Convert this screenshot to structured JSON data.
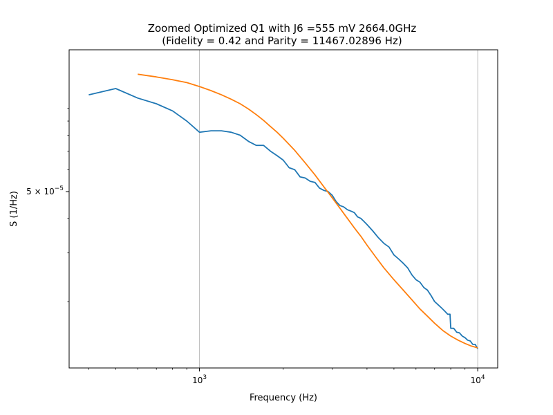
{
  "chart_data": {
    "type": "line",
    "title_line1": "Zoomed Optimized Q1 with J6 =555 mV 2664.0GHz",
    "title_line2": "(Fidelity = 0.42 and Parity = 11467.02896 Hz)",
    "xlabel": "Frequency (Hz)",
    "ylabel": "S (1/Hz)",
    "x_scale": "log",
    "y_scale": "log",
    "xlim": [
      340,
      11800
    ],
    "ylim": [
      1.15e-05,
      0.000163
    ],
    "x_ticks": [
      {
        "value": 1000,
        "base": "10",
        "exp": "3"
      },
      {
        "value": 10000,
        "base": "10",
        "exp": "4"
      }
    ],
    "y_ticks": [
      {
        "value": 5e-05,
        "mantissa": "5",
        "base": "10",
        "exp": "−5"
      }
    ],
    "grid": "x-major",
    "legend": "none",
    "series": [
      {
        "color": "#1f77b4",
        "x": [
          400,
          500,
          600,
          700,
          800,
          900,
          1000,
          1100,
          1200,
          1300,
          1400,
          1500,
          1600,
          1700,
          1800,
          1900,
          2000,
          2100,
          2200,
          2300,
          2400,
          2500,
          2600,
          2700,
          2800,
          2900,
          3000,
          3100,
          3200,
          3300,
          3400,
          3500,
          3600,
          3700,
          3800,
          3900,
          4000,
          4200,
          4400,
          4600,
          4800,
          5000,
          5200,
          5400,
          5600,
          5800,
          6000,
          6200,
          6400,
          6600,
          6800,
          7000,
          7200,
          7400,
          7600,
          7800,
          7950,
          8000,
          8200,
          8400,
          8600,
          8800,
          9000,
          9200,
          9400,
          9600,
          9800,
          10000
        ],
        "y": [
          0.000112,
          0.000118,
          0.000109,
          0.000104,
          9.8e-05,
          9e-05,
          8.2e-05,
          8.3e-05,
          8.3e-05,
          8.2e-05,
          8e-05,
          7.6e-05,
          7.35e-05,
          7.35e-05,
          7e-05,
          6.75e-05,
          6.5e-05,
          6.1e-05,
          6e-05,
          5.65e-05,
          5.6e-05,
          5.45e-05,
          5.4e-05,
          5.15e-05,
          5.05e-05,
          5e-05,
          4.85e-05,
          4.6e-05,
          4.45e-05,
          4.4e-05,
          4.3e-05,
          4.25e-05,
          4.2e-05,
          4.05e-05,
          4e-05,
          3.9e-05,
          3.8e-05,
          3.6e-05,
          3.4e-05,
          3.25e-05,
          3.15e-05,
          2.95e-05,
          2.85e-05,
          2.75e-05,
          2.65e-05,
          2.5e-05,
          2.4e-05,
          2.35e-05,
          2.25e-05,
          2.2e-05,
          2.1e-05,
          2e-05,
          1.95e-05,
          1.9e-05,
          1.85e-05,
          1.8e-05,
          1.8e-05,
          1.6e-05,
          1.6e-05,
          1.55e-05,
          1.54e-05,
          1.5e-05,
          1.48e-05,
          1.45e-05,
          1.44e-05,
          1.4e-05,
          1.4e-05,
          1.35e-05
        ]
      },
      {
        "color": "#ff7f0e",
        "x": [
          600,
          700,
          800,
          900,
          1000,
          1100,
          1200,
          1300,
          1400,
          1500,
          1600,
          1700,
          1800,
          1900,
          2000,
          2200,
          2400,
          2600,
          2800,
          3000,
          3200,
          3400,
          3600,
          3800,
          4000,
          4300,
          4600,
          5000,
          5400,
          5800,
          6200,
          6600,
          7000,
          7500,
          8000,
          8500,
          9000,
          9500,
          10000
        ],
        "y": [
          0.000133,
          0.00013,
          0.000127,
          0.000124,
          0.00012,
          0.000116,
          0.000112,
          0.000108,
          0.000104,
          9.95e-05,
          9.5e-05,
          9.05e-05,
          8.6e-05,
          8.2e-05,
          7.8e-05,
          7.05e-05,
          6.35e-05,
          5.75e-05,
          5.2e-05,
          4.75e-05,
          4.35e-05,
          4e-05,
          3.7e-05,
          3.45e-05,
          3.2e-05,
          2.9e-05,
          2.65e-05,
          2.4e-05,
          2.2e-05,
          2.03e-05,
          1.88e-05,
          1.77e-05,
          1.67e-05,
          1.57e-05,
          1.5e-05,
          1.45e-05,
          1.41e-05,
          1.38e-05,
          1.36e-05
        ]
      }
    ]
  }
}
